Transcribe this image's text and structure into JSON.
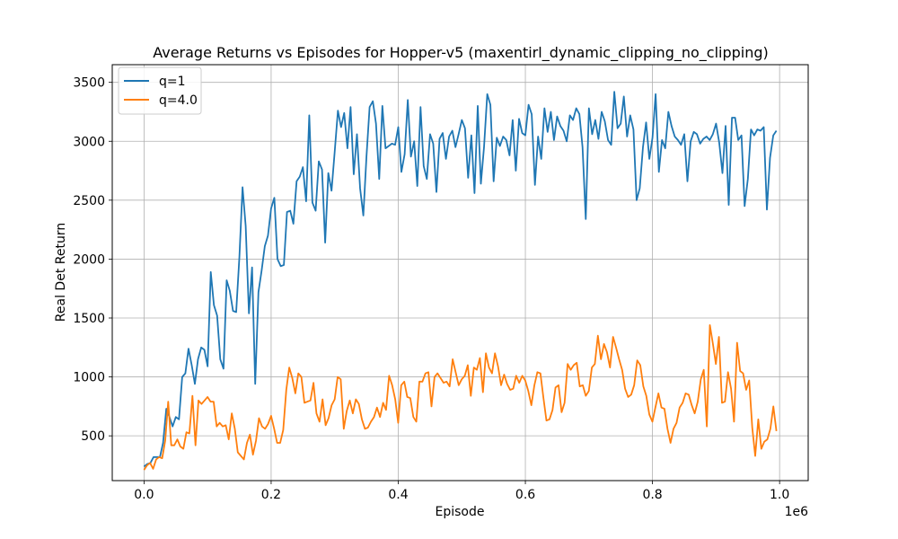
{
  "chart_data": {
    "type": "line",
    "title": "Average Returns vs Episodes for Hopper-v5 (maxentirl_dynamic_clipping_no_clipping)",
    "xlabel": "Episode",
    "ylabel": "Real Det Return",
    "x_offset_label": "1e6",
    "xlim": [
      -0.05,
      1.045
    ],
    "ylim": [
      120,
      3650
    ],
    "x_ticks": [
      0.0,
      0.2,
      0.4,
      0.6,
      0.8,
      1.0
    ],
    "x_tick_labels": [
      "0.0",
      "0.2",
      "0.4",
      "0.6",
      "0.8",
      "1.0"
    ],
    "y_ticks": [
      500,
      1000,
      1500,
      2000,
      2500,
      3000,
      3500
    ],
    "y_tick_labels": [
      "500",
      "1000",
      "1500",
      "2000",
      "2500",
      "3000",
      "3500"
    ],
    "grid": true,
    "legend_position": "top-left",
    "x_start": 0.0,
    "x_end": 0.995,
    "series": [
      {
        "name": "q=1",
        "color": "#1f77b4",
        "values": [
          240,
          260,
          270,
          320,
          320,
          320,
          440,
          730,
          660,
          580,
          660,
          640,
          1000,
          1030,
          1240,
          1100,
          940,
          1150,
          1250,
          1230,
          1090,
          1890,
          1610,
          1520,
          1150,
          1070,
          1820,
          1730,
          1560,
          1550,
          2020,
          2610,
          2280,
          1540,
          1930,
          940,
          1720,
          1900,
          2110,
          2200,
          2430,
          2520,
          2000,
          1940,
          1950,
          2400,
          2410,
          2300,
          2660,
          2700,
          2780,
          2490,
          3220,
          2480,
          2410,
          2830,
          2760,
          2140,
          2730,
          2580,
          2910,
          3260,
          3120,
          3240,
          2940,
          3290,
          2720,
          3060,
          2600,
          2370,
          2870,
          3290,
          3340,
          3150,
          2680,
          3300,
          2940,
          2960,
          2980,
          2970,
          3120,
          2740,
          2890,
          3350,
          2870,
          3000,
          2620,
          3290,
          2790,
          2680,
          3060,
          2980,
          2570,
          3020,
          3070,
          2850,
          3040,
          3090,
          2950,
          3060,
          3180,
          3110,
          2690,
          3050,
          2560,
          3300,
          2640,
          2950,
          3400,
          3310,
          2660,
          3030,
          2960,
          3040,
          3010,
          2880,
          3180,
          2750,
          3190,
          3070,
          3050,
          3310,
          3230,
          2630,
          3040,
          2850,
          3280,
          3080,
          3250,
          3010,
          3210,
          3130,
          3090,
          3000,
          3220,
          3180,
          3280,
          3230,
          2950,
          2340,
          3280,
          3060,
          3180,
          3020,
          3250,
          3170,
          3010,
          2970,
          3420,
          3110,
          3150,
          3380,
          3040,
          3220,
          3100,
          2500,
          2600,
          2950,
          3160,
          2850,
          3030,
          3400,
          2740,
          3010,
          2940,
          3250,
          3130,
          3040,
          3010,
          2970,
          3060,
          2660,
          3000,
          3080,
          3060,
          2980,
          3020,
          3040,
          3010,
          3060,
          3150,
          2990,
          2730,
          3130,
          2460,
          3200,
          3200,
          3010,
          3050,
          2450,
          2680,
          3100,
          3050,
          3100,
          3090,
          3120,
          2420,
          2860,
          3050,
          3090
        ]
      },
      {
        "name": "q=4.0",
        "color": "#ff7f0e",
        "values": [
          210,
          250,
          270,
          220,
          300,
          320,
          310,
          460,
          790,
          420,
          420,
          470,
          410,
          390,
          530,
          520,
          840,
          420,
          800,
          770,
          800,
          830,
          790,
          790,
          580,
          610,
          580,
          590,
          470,
          690,
          560,
          360,
          330,
          300,
          440,
          510,
          340,
          460,
          650,
          580,
          560,
          600,
          670,
          560,
          440,
          440,
          550,
          890,
          1080,
          990,
          860,
          1030,
          1000,
          780,
          790,
          800,
          950,
          690,
          620,
          810,
          590,
          650,
          760,
          810,
          1000,
          980,
          560,
          710,
          800,
          690,
          810,
          770,
          640,
          560,
          570,
          620,
          660,
          740,
          660,
          780,
          720,
          1010,
          930,
          810,
          610,
          930,
          960,
          830,
          820,
          660,
          620,
          960,
          960,
          1030,
          1040,
          750,
          1000,
          1030,
          990,
          950,
          960,
          920,
          1150,
          1040,
          930,
          980,
          1010,
          1100,
          840,
          1080,
          1060,
          1160,
          870,
          1200,
          1080,
          1030,
          1200,
          1090,
          930,
          1020,
          940,
          890,
          900,
          1010,
          950,
          1010,
          970,
          880,
          760,
          930,
          1040,
          1030,
          820,
          630,
          640,
          720,
          910,
          930,
          700,
          780,
          1110,
          1060,
          1100,
          1120,
          920,
          930,
          840,
          880,
          1080,
          1110,
          1350,
          1150,
          1280,
          1210,
          1080,
          1340,
          1250,
          1150,
          1060,
          900,
          830,
          850,
          930,
          1140,
          1100,
          920,
          840,
          680,
          620,
          740,
          860,
          740,
          730,
          560,
          440,
          560,
          610,
          740,
          780,
          860,
          850,
          760,
          690,
          790,
          980,
          1060,
          580,
          1440,
          1280,
          1110,
          1340,
          780,
          790,
          1040,
          900,
          620,
          1290,
          1050,
          1030,
          890,
          970,
          570,
          330,
          640,
          390,
          450,
          470,
          560,
          750,
          540
        ]
      }
    ]
  }
}
